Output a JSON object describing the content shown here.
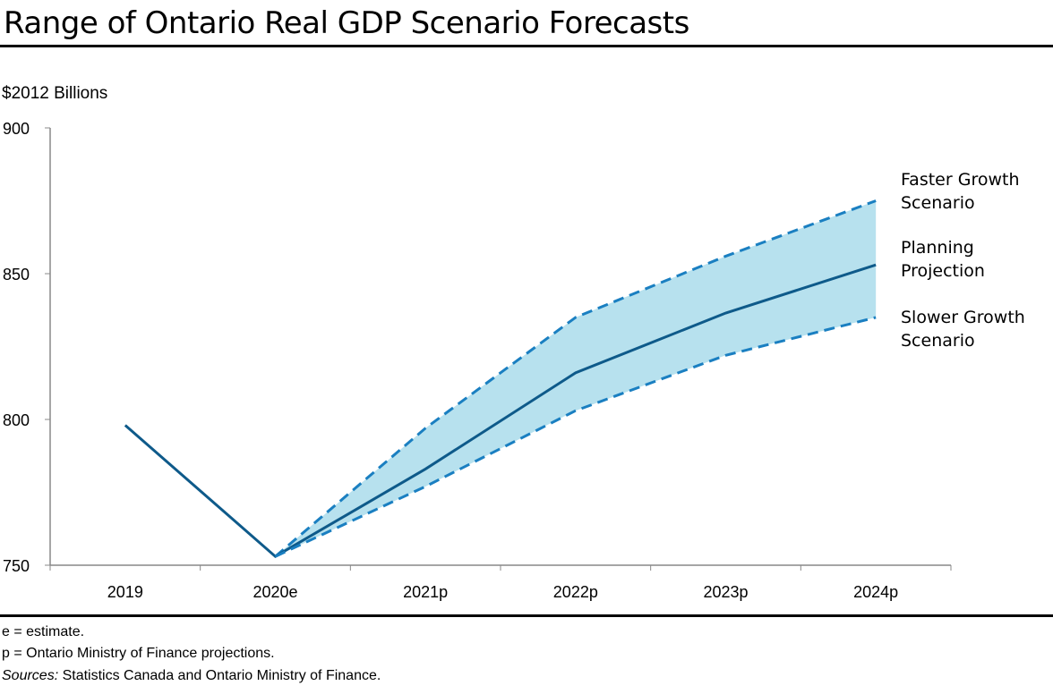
{
  "chart_data": {
    "type": "line",
    "title": "Range of Ontario Real GDP Scenario Forecasts",
    "ylabel": "$2012 Billions",
    "xlabel": "",
    "categories": [
      "2019",
      "2020e",
      "2021p",
      "2022p",
      "2023p",
      "2024p"
    ],
    "ylim": [
      750,
      900
    ],
    "yticks": [
      750,
      800,
      850,
      900
    ],
    "grid": false,
    "series": [
      {
        "name": "Faster Growth Scenario",
        "style": "dashed",
        "color": "#1a7fc1",
        "values": [
          null,
          753,
          797,
          835,
          856,
          875
        ]
      },
      {
        "name": "Planning Projection",
        "style": "solid",
        "color": "#0e5a8a",
        "values": [
          798,
          753,
          783,
          816,
          836.5,
          853
        ]
      },
      {
        "name": "Slower Growth Scenario",
        "style": "dashed",
        "color": "#1a7fc1",
        "values": [
          null,
          753,
          777,
          803,
          822,
          835
        ]
      }
    ],
    "band_color": "#b7e1ee",
    "legend_placement": "right (inline labels)"
  },
  "labels": {
    "faster": [
      "Faster Growth",
      "Scenario"
    ],
    "planning": [
      "Planning",
      "Projection"
    ],
    "slower": [
      "Slower Growth",
      "Scenario"
    ]
  },
  "notes": {
    "estimate": "e = estimate.",
    "projection": "p = Ontario Ministry of Finance projections.",
    "sources_label": "Sources:",
    "sources_text": " Statistics Canada and Ontario Ministry of Finance."
  }
}
